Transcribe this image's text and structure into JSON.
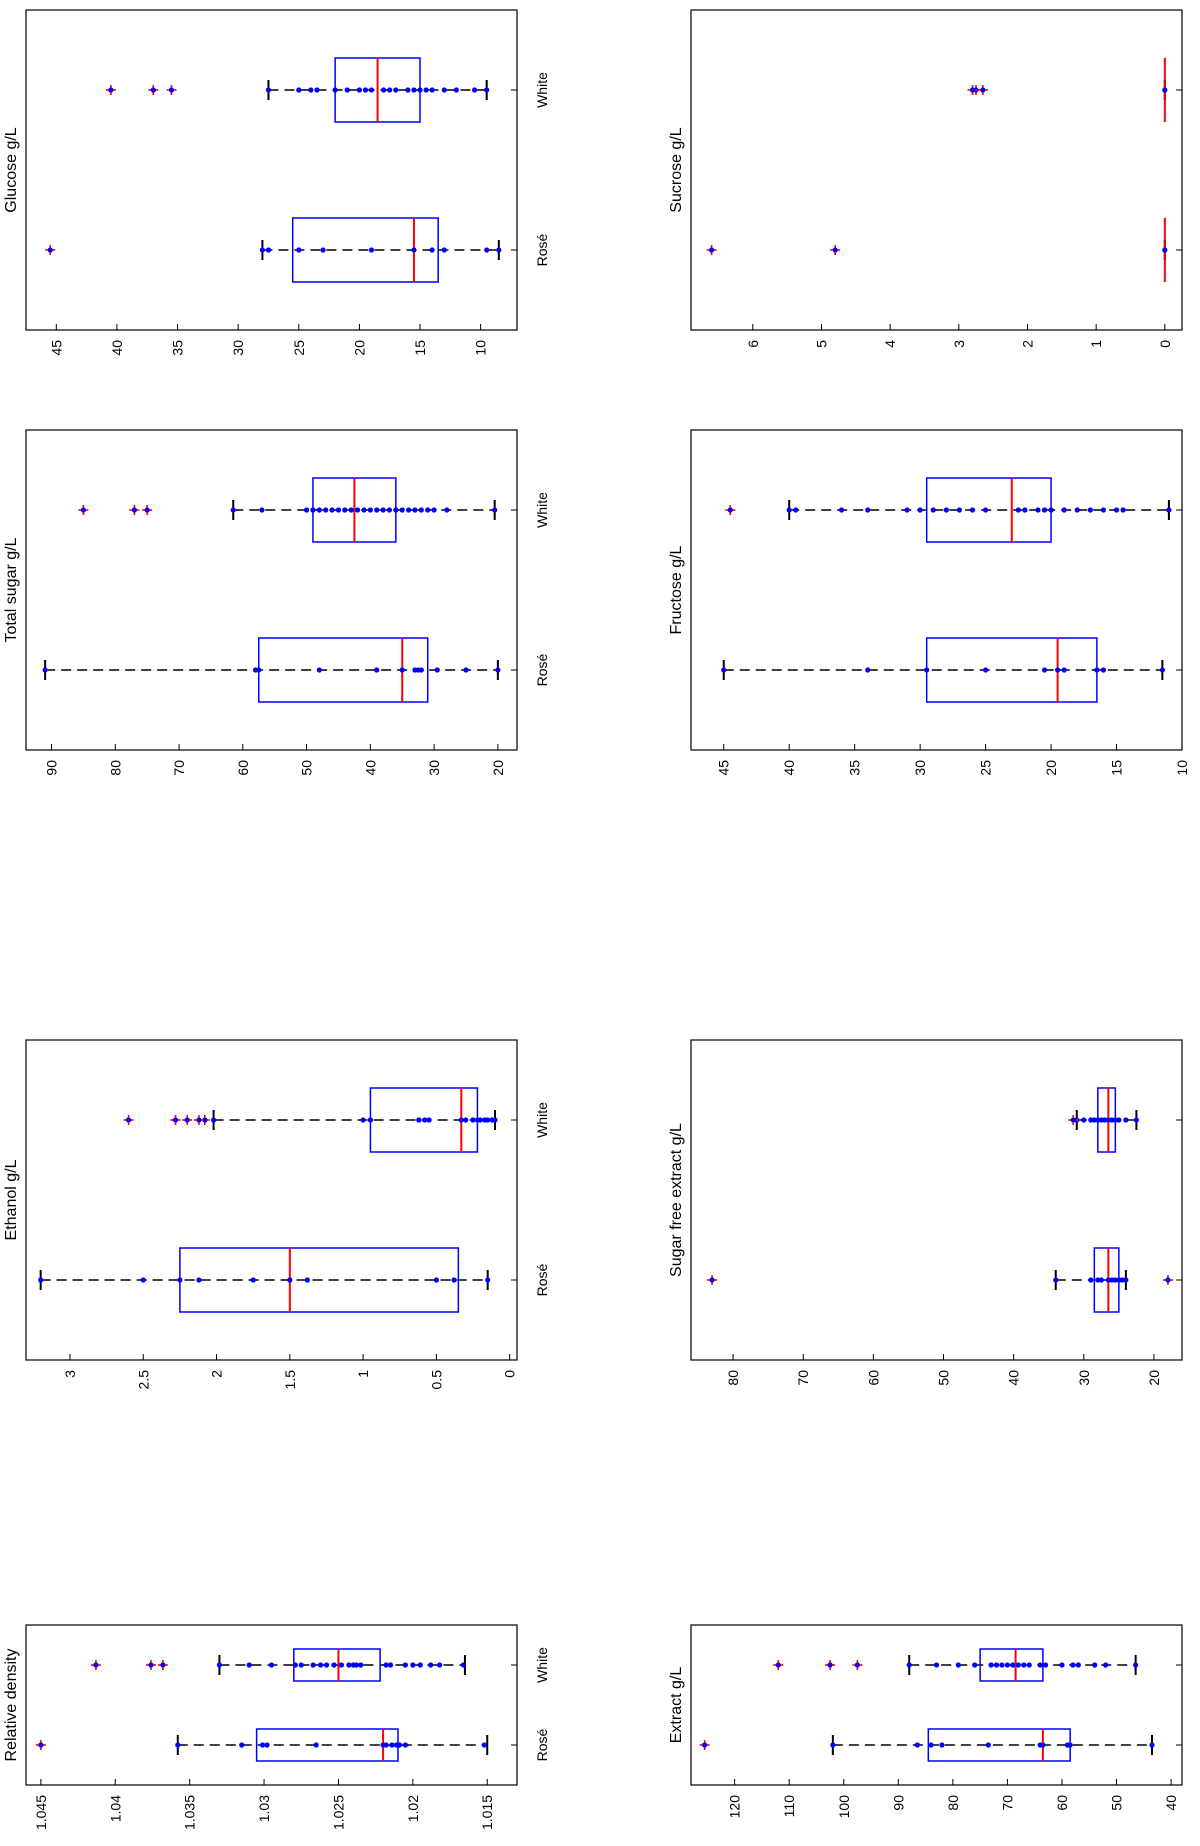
{
  "colors": {
    "box": "#0000ff",
    "median": "#ff0000",
    "whisker": "#000000",
    "points": "#0000ff",
    "outlier": "#ff0000"
  },
  "chart_data": [
    {
      "type": "box",
      "title": "Relative density",
      "categories": [
        "Rosé",
        "White"
      ],
      "axis_ticks": [
        1.045,
        1.04,
        1.035,
        1.03,
        1.025,
        1.02,
        1.015
      ],
      "axis_tick_labels": [
        "1.045",
        "1.04",
        "1.035",
        "1.03",
        "1.025",
        "1.02",
        "1.015"
      ],
      "range": [
        1.013,
        1.046
      ],
      "boxes": [
        {
          "category": "Rosé",
          "whisker_low": 1.015,
          "q1": 1.021,
          "median": 1.022,
          "q3": 1.0305,
          "whisker_high": 1.0358,
          "points": [
            1.0152,
            1.0205,
            1.0209,
            1.0211,
            1.0214,
            1.0218,
            1.022,
            1.0265,
            1.0298,
            1.0301,
            1.0315,
            1.0358
          ],
          "outliers": [
            1.045
          ]
        },
        {
          "category": "White",
          "whisker_low": 1.0165,
          "q1": 1.0222,
          "median": 1.025,
          "q3": 1.028,
          "whisker_high": 1.033,
          "points": [
            1.0166,
            1.0182,
            1.0188,
            1.0195,
            1.02,
            1.0205,
            1.0215,
            1.0218,
            1.0235,
            1.0238,
            1.024,
            1.0243,
            1.0248,
            1.0253,
            1.0258,
            1.0262,
            1.0267,
            1.0275,
            1.0279,
            1.0295,
            1.031,
            1.033
          ],
          "outliers": [
            1.0368,
            1.0376,
            1.0413
          ]
        }
      ]
    },
    {
      "type": "box",
      "title": "Ethanol g/L",
      "categories": [
        "Rosé",
        "White"
      ],
      "axis_ticks": [
        3,
        2.5,
        2,
        1.5,
        1,
        0.5,
        0
      ],
      "axis_tick_labels": [
        "3",
        "2.5",
        "2",
        "1.5",
        "1",
        "0.5",
        "0"
      ],
      "range": [
        -0.05,
        3.3
      ],
      "boxes": [
        {
          "category": "Rosé",
          "whisker_low": 0.15,
          "q1": 0.35,
          "median": 1.5,
          "q3": 2.25,
          "whisker_high": 3.2,
          "points": [
            0.15,
            0.38,
            0.5,
            1.38,
            1.5,
            1.75,
            2.12,
            2.25,
            2.5,
            3.2
          ],
          "outliers": []
        },
        {
          "category": "White",
          "whisker_low": 0.1,
          "q1": 0.22,
          "median": 0.33,
          "q3": 0.95,
          "whisker_high": 2.02,
          "points": [
            0.1,
            0.12,
            0.15,
            0.17,
            0.2,
            0.22,
            0.25,
            0.3,
            0.33,
            0.55,
            0.58,
            0.62,
            0.95,
            1.0,
            2.02
          ],
          "outliers": [
            2.08,
            2.12,
            2.2,
            2.28,
            2.6
          ]
        }
      ]
    },
    {
      "type": "box",
      "title": "Total sugar g/L",
      "categories": [
        "Rosé",
        "White"
      ],
      "axis_ticks": [
        90,
        80,
        70,
        60,
        50,
        40,
        30,
        20
      ],
      "axis_tick_labels": [
        "90",
        "80",
        "70",
        "60",
        "50",
        "40",
        "30",
        "20"
      ],
      "range": [
        17,
        94
      ],
      "boxes": [
        {
          "category": "Rosé",
          "whisker_low": 20,
          "q1": 31,
          "median": 35,
          "q3": 57.5,
          "whisker_high": 91,
          "points": [
            20,
            25,
            29.5,
            32,
            32.5,
            33,
            35,
            39,
            48,
            57.5,
            58,
            91
          ],
          "outliers": []
        },
        {
          "category": "White",
          "whisker_low": 20.5,
          "q1": 36,
          "median": 42.5,
          "q3": 49,
          "whisker_high": 61.5,
          "points": [
            20.5,
            28,
            30,
            31,
            32,
            33,
            34,
            35,
            36,
            37,
            38,
            39,
            40,
            41,
            42,
            43,
            44,
            45,
            46,
            47,
            48,
            49,
            50,
            57,
            61.5
          ],
          "outliers": [
            75,
            77,
            85
          ]
        }
      ]
    },
    {
      "type": "box",
      "title": "Glucose g/L",
      "categories": [
        "Rosé",
        "White"
      ],
      "axis_ticks": [
        45,
        40,
        35,
        30,
        25,
        20,
        15,
        10
      ],
      "axis_tick_labels": [
        "45",
        "40",
        "35",
        "30",
        "25",
        "20",
        "15",
        "10"
      ],
      "range": [
        7,
        47.5
      ],
      "boxes": [
        {
          "category": "Rosé",
          "whisker_low": 8.5,
          "q1": 13.5,
          "median": 15.5,
          "q3": 25.5,
          "whisker_high": 28,
          "points": [
            8.5,
            9.5,
            13,
            14,
            15.5,
            19,
            23,
            25,
            27.5,
            28
          ],
          "outliers": [
            45.5
          ]
        },
        {
          "category": "White",
          "whisker_low": 9.5,
          "q1": 15,
          "median": 18.5,
          "q3": 22,
          "whisker_high": 27.5,
          "points": [
            9.5,
            10.5,
            12,
            13,
            14,
            14.5,
            15,
            15.5,
            16,
            17,
            17.5,
            18,
            19,
            19.5,
            20,
            21,
            22,
            23.5,
            24,
            25,
            27.5
          ],
          "outliers": [
            35.5,
            37,
            40.5
          ]
        }
      ]
    },
    {
      "type": "box",
      "title": "Extract g/L",
      "categories": [
        "Rosé",
        "White"
      ],
      "axis_ticks": [
        120,
        110,
        100,
        90,
        80,
        70,
        60,
        50,
        40
      ],
      "axis_tick_labels": [
        "120",
        "110",
        "100",
        "90",
        "80",
        "70",
        "60",
        "50",
        "40"
      ],
      "range": [
        38,
        128
      ],
      "boxes": [
        {
          "category": "Rosé",
          "whisker_low": 43.5,
          "q1": 58.5,
          "median": 63.5,
          "q3": 84.5,
          "whisker_high": 102,
          "points": [
            43.5,
            58.5,
            59,
            63.5,
            64,
            73.5,
            82,
            84,
            86.5,
            102
          ],
          "outliers": [
            125.5
          ]
        },
        {
          "category": "White",
          "whisker_low": 46.5,
          "q1": 63.5,
          "median": 68.5,
          "q3": 75,
          "whisker_high": 88,
          "points": [
            46.5,
            52,
            54,
            57,
            58,
            60,
            63,
            64,
            66,
            67,
            68,
            69,
            70,
            71,
            72,
            73,
            76,
            79,
            83,
            88
          ],
          "outliers": [
            97.5,
            102.5,
            112
          ]
        }
      ]
    },
    {
      "type": "box",
      "title": "Sugar free extract g/L",
      "categories": [
        "Rosé",
        "White"
      ],
      "axis_ticks": [
        80,
        70,
        60,
        50,
        40,
        30,
        20
      ],
      "axis_tick_labels": [
        "80",
        "70",
        "60",
        "50",
        "40",
        "30",
        "20"
      ],
      "range": [
        16,
        86
      ],
      "boxes": [
        {
          "category": "Rosé",
          "whisker_low": 24,
          "q1": 25,
          "median": 26.5,
          "q3": 28.5,
          "whisker_high": 34,
          "points": [
            24,
            24.5,
            25,
            25.5,
            26,
            26.5,
            27.5,
            28,
            29,
            34
          ],
          "outliers": [
            18,
            83
          ]
        },
        {
          "category": "White",
          "whisker_low": 22.5,
          "q1": 25.5,
          "median": 26.5,
          "q3": 28,
          "whisker_high": 31,
          "points": [
            22.5,
            24,
            25,
            25.5,
            26,
            26.5,
            27,
            27.5,
            28,
            28.5,
            29,
            30,
            31
          ],
          "outliers": [
            31.5
          ]
        }
      ]
    },
    {
      "type": "box",
      "title": "Fructose g/L",
      "categories": [
        "Rosé",
        "White"
      ],
      "axis_ticks": [
        45,
        40,
        35,
        30,
        25,
        20,
        15,
        10
      ],
      "axis_tick_labels": [
        "45",
        "40",
        "35",
        "30",
        "25",
        "20",
        "15",
        "10"
      ],
      "range": [
        10,
        47.5
      ],
      "boxes": [
        {
          "category": "Rosé",
          "whisker_low": 11.5,
          "q1": 16.5,
          "median": 19.5,
          "q3": 29.5,
          "whisker_high": 45,
          "points": [
            11.5,
            16,
            16.5,
            19,
            19.5,
            20.5,
            25,
            29.5,
            34,
            45
          ],
          "outliers": []
        },
        {
          "category": "White",
          "whisker_low": 11,
          "q1": 20,
          "median": 23,
          "q3": 29.5,
          "whisker_high": 40,
          "points": [
            11,
            14.5,
            15,
            16,
            17,
            18,
            19,
            20,
            20.5,
            21,
            22,
            22.5,
            25,
            26,
            27,
            28,
            29,
            30,
            31,
            34,
            36,
            39.5,
            40
          ],
          "outliers": [
            44.5
          ]
        }
      ]
    },
    {
      "type": "box",
      "title": "Sucrose g/L",
      "categories": [
        "Rosé",
        "White"
      ],
      "axis_ticks": [
        6,
        5,
        4,
        3,
        2,
        1,
        0
      ],
      "axis_tick_labels": [
        "6",
        "5",
        "4",
        "3",
        "2",
        "1",
        "0"
      ],
      "range": [
        -0.25,
        6.9
      ],
      "boxes": [
        {
          "category": "Rosé",
          "whisker_low": 0,
          "q1": 0,
          "median": 0,
          "q3": 0,
          "whisker_high": 0,
          "points": [
            0
          ],
          "outliers": [
            4.8,
            6.6
          ]
        },
        {
          "category": "White",
          "whisker_low": 0,
          "q1": 0,
          "median": 0,
          "q3": 0,
          "whisker_high": 0,
          "points": [
            0
          ],
          "outliers": [
            2.65,
            2.75,
            2.8
          ]
        }
      ]
    }
  ]
}
